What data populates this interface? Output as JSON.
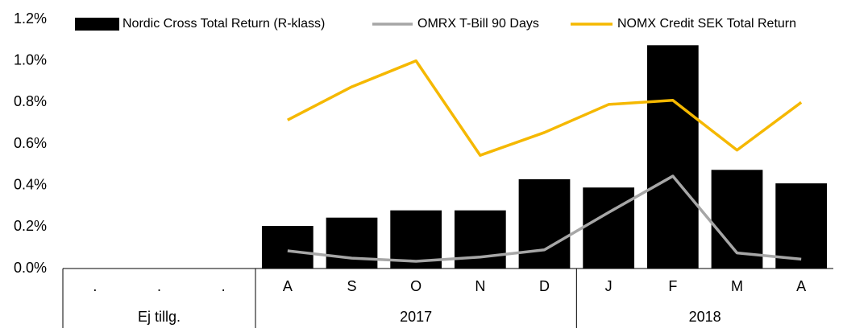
{
  "chart_data": {
    "type": "bar",
    "categories": [
      ".",
      ".",
      ".",
      "A",
      "S",
      "O",
      "N",
      "D",
      "J",
      "F",
      "M",
      "A"
    ],
    "x_groups": [
      {
        "label": "Ej tillg.",
        "size": 3
      },
      {
        "label": "2017",
        "size": 5
      },
      {
        "label": "2018",
        "size": 4
      }
    ],
    "series": [
      {
        "name": "Nordic Cross Total Return (R-klass)",
        "type": "bar",
        "color": "#000000",
        "values": [
          null,
          null,
          null,
          0.205,
          0.245,
          0.28,
          0.28,
          0.43,
          0.39,
          1.075,
          0.475,
          0.41
        ]
      },
      {
        "name": "OMRX T-Bill 90 Days",
        "type": "line",
        "color": "#a6a6a6",
        "values": [
          null,
          null,
          null,
          0.085,
          0.05,
          0.035,
          0.055,
          0.09,
          0.27,
          0.445,
          0.075,
          0.045
        ]
      },
      {
        "name": "NOMX Credit SEK Total Return",
        "type": "line",
        "color": "#f5b800",
        "values": [
          null,
          null,
          null,
          0.715,
          0.875,
          1.0,
          0.545,
          0.655,
          0.79,
          0.81,
          0.57,
          0.8
        ]
      }
    ],
    "ylim": [
      0,
      1.2
    ],
    "yticks": [
      {
        "value": 0,
        "label": "0.0%"
      },
      {
        "value": 0.2,
        "label": "0.2%"
      },
      {
        "value": 0.4,
        "label": "0.4%"
      },
      {
        "value": 0.6,
        "label": "0.6%"
      },
      {
        "value": 0.8,
        "label": "0.8%"
      },
      {
        "value": 1.0,
        "label": "1.0%"
      },
      {
        "value": 1.2,
        "label": "1.2%"
      }
    ],
    "legend": "top"
  }
}
